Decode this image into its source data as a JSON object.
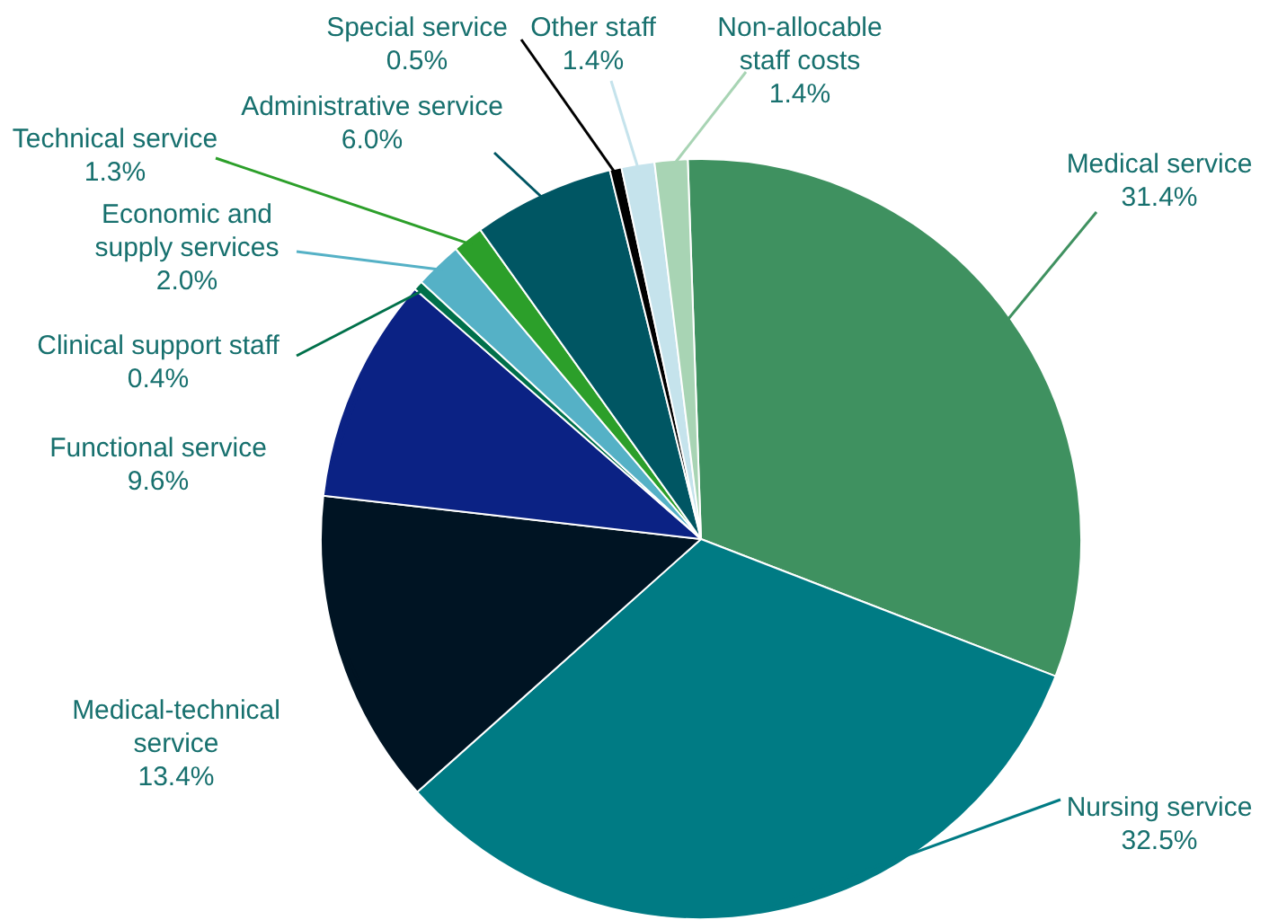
{
  "chart_data": {
    "type": "pie",
    "categories": [
      "Medical service",
      "Nursing service",
      "Medical-technical service",
      "Functional service",
      "Clinical support staff",
      "Economic and supply services",
      "Technical service",
      "Administrative service",
      "Special service",
      "Other staff",
      "Non-allocable staff costs"
    ],
    "values": [
      31.4,
      32.5,
      13.4,
      9.6,
      0.4,
      2.0,
      1.3,
      6.0,
      0.5,
      1.4,
      1.4
    ],
    "value_labels": [
      "31.4%",
      "32.5%",
      "13.4%",
      "9.6%",
      "0.4%",
      "2.0%",
      "1.3%",
      "6.0%",
      "0.5%",
      "1.4%",
      "1.4%"
    ],
    "colors": [
      "#3f9160",
      "#007b84",
      "#001423",
      "#0b2284",
      "#00704a",
      "#55b1c6",
      "#2c9f2a",
      "#005663",
      "#000000",
      "#c5e3ec",
      "#a8d4b4"
    ],
    "legend": false
  }
}
